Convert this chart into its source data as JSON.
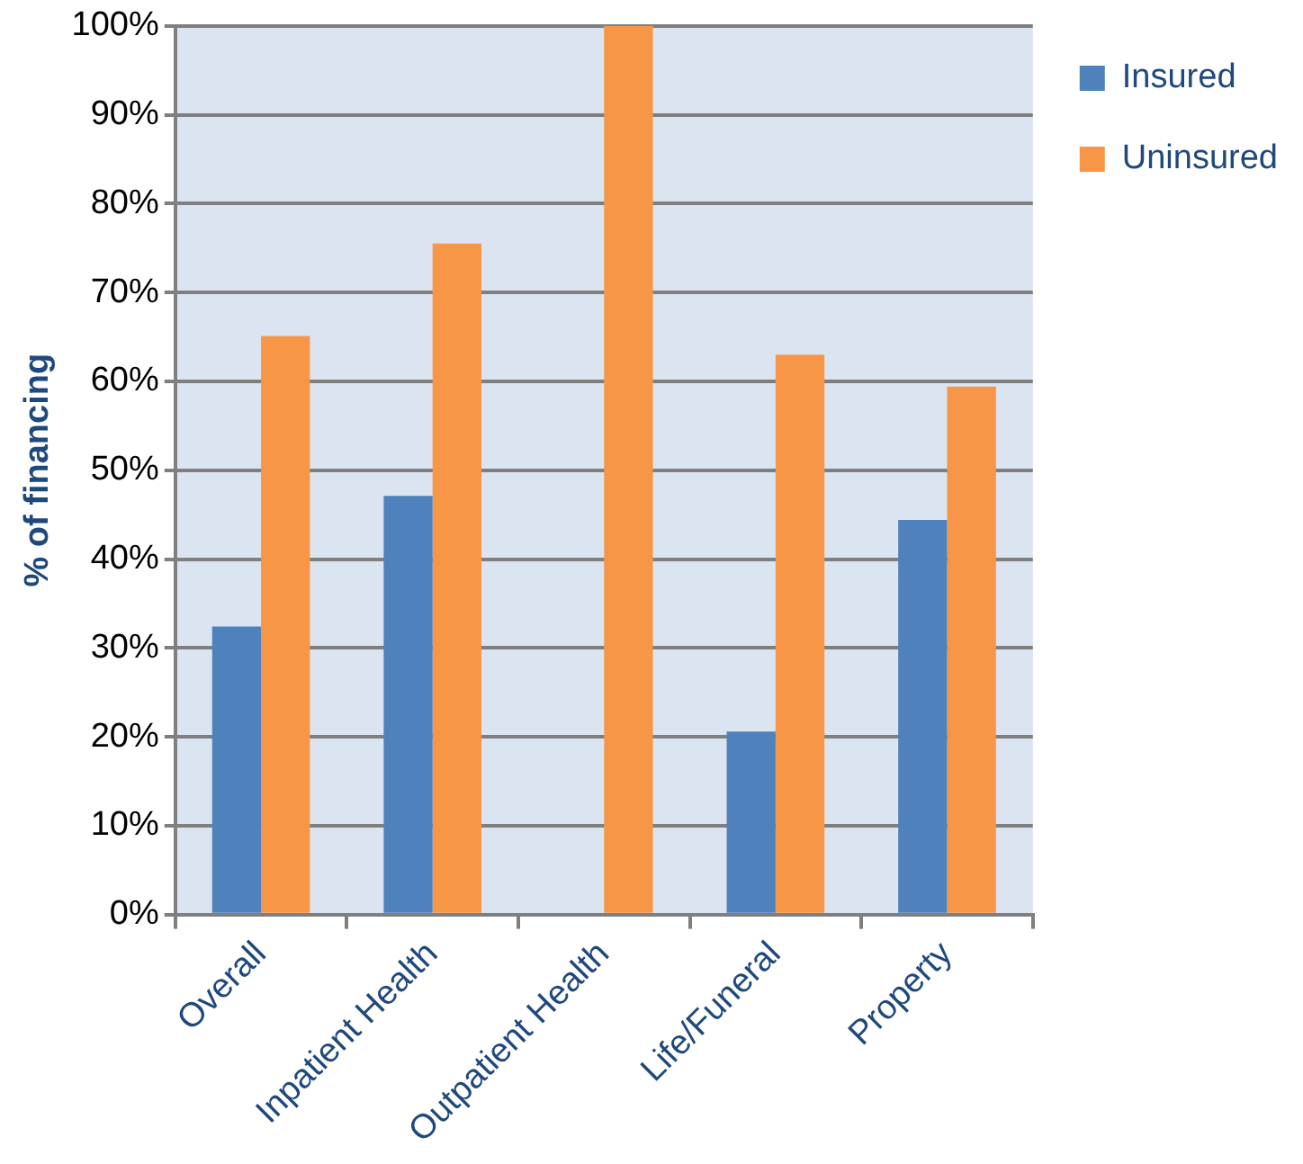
{
  "chart_data": {
    "type": "bar",
    "ylabel": "% of financing",
    "categories": [
      "Overall",
      "Inpatient Health",
      "Outpatient Health",
      "Life/Funeral",
      "Property"
    ],
    "series": [
      {
        "name": "Insured",
        "color": "#4f81bd",
        "values": [
          32.4,
          47.1,
          0,
          20.6,
          44.4
        ]
      },
      {
        "name": "Uninsured",
        "color": "#f79646",
        "values": [
          65.1,
          75.5,
          100,
          63.0,
          59.4
        ]
      }
    ],
    "ylim": [
      0,
      100
    ],
    "yticks": [
      {
        "value": 0,
        "label": "0%"
      },
      {
        "value": 10,
        "label": "10%"
      },
      {
        "value": 20,
        "label": "20%"
      },
      {
        "value": 30,
        "label": "30%"
      },
      {
        "value": 40,
        "label": "40%"
      },
      {
        "value": 50,
        "label": "50%"
      },
      {
        "value": 60,
        "label": "60%"
      },
      {
        "value": 70,
        "label": "70%"
      },
      {
        "value": 80,
        "label": "80%"
      },
      {
        "value": 90,
        "label": "90%"
      },
      {
        "value": 100,
        "label": "100%"
      }
    ],
    "grid": "y",
    "legend": "top right"
  }
}
